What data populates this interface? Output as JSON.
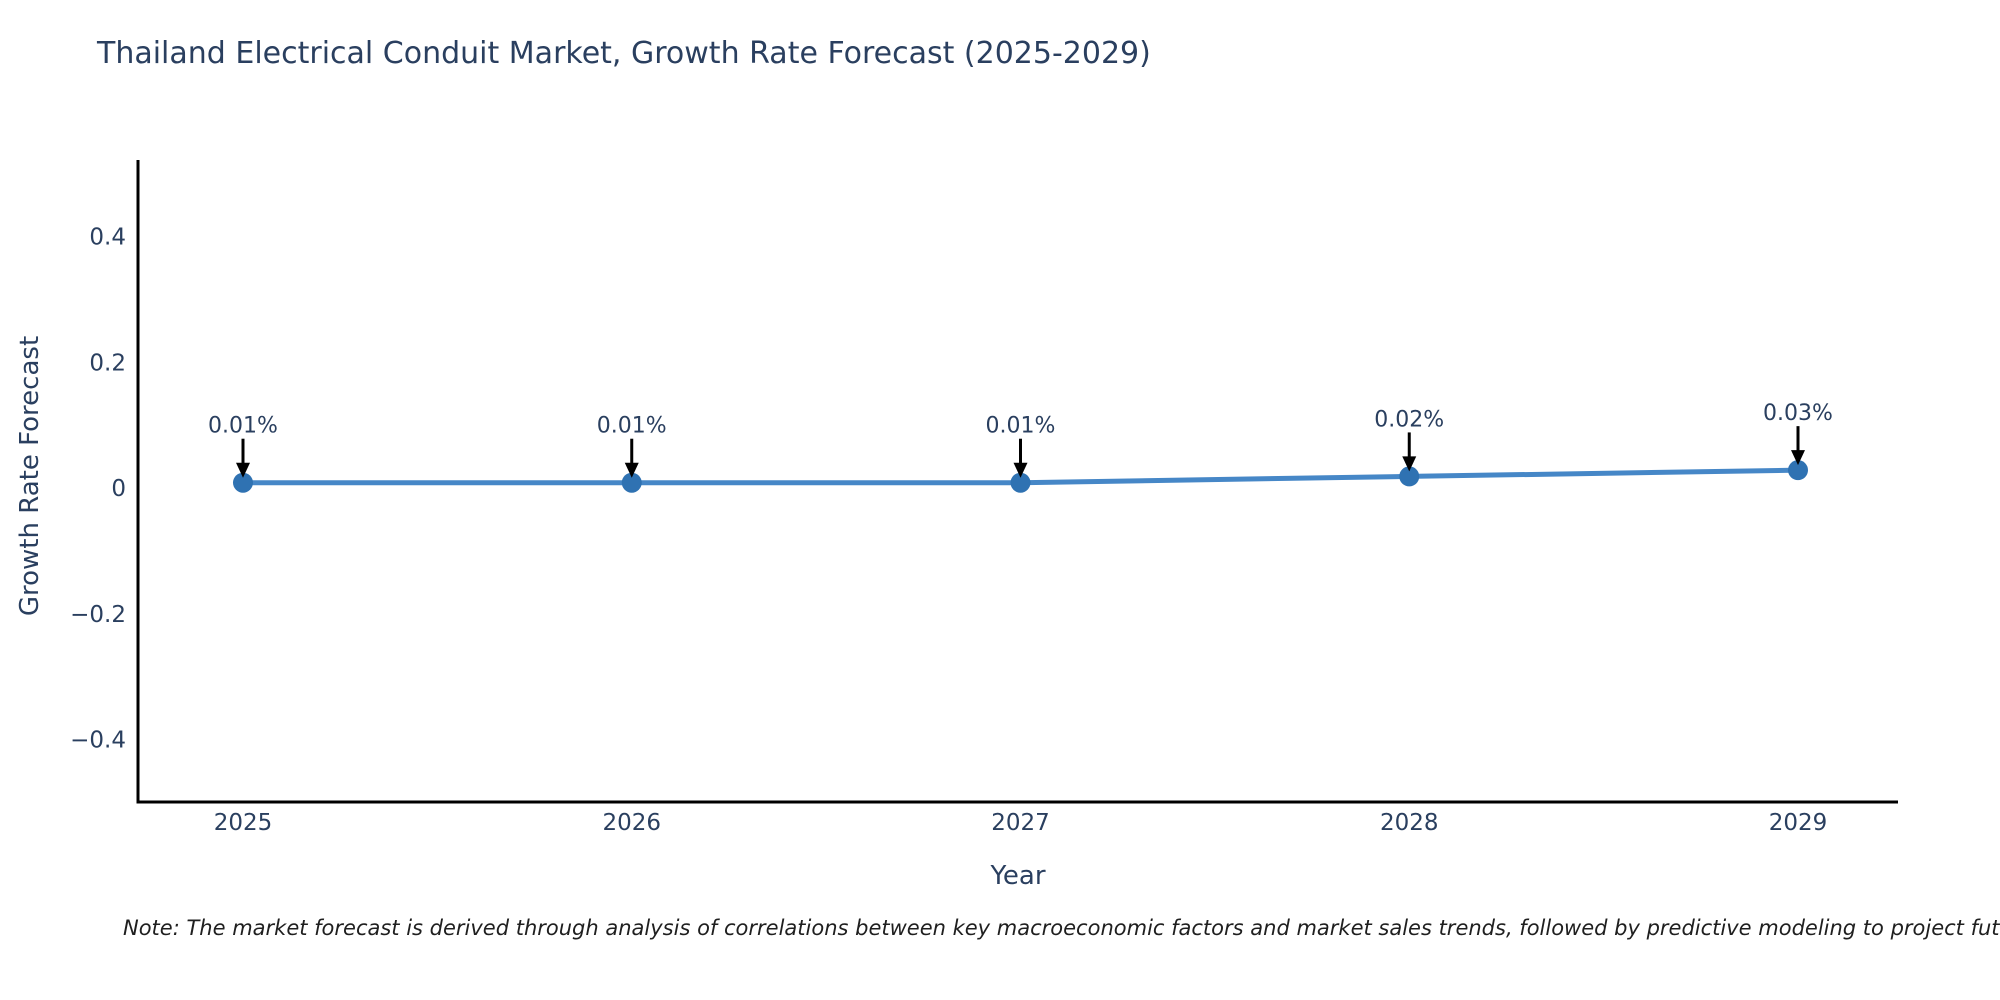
{
  "title": "Thailand Electrical Conduit Market, Growth Rate Forecast (2025-2029)",
  "note": "Note: The market forecast is derived through analysis of correlations between key macroeconomic factors and market sales trends, followed by predictive modeling to project future sales",
  "chart_data": {
    "type": "line",
    "title": "Thailand Electrical Conduit Market, Growth Rate Forecast (2025-2029)",
    "x": [
      "2025",
      "2026",
      "2027",
      "2028",
      "2029"
    ],
    "y": [
      0.01,
      0.01,
      0.01,
      0.02,
      0.03
    ],
    "point_labels": [
      "0.01%",
      "0.01%",
      "0.01%",
      "0.02%",
      "0.03%"
    ],
    "xlabel": "Year",
    "ylabel": "Growth Rate Forecast",
    "ytick_labels": [
      "0.4",
      "0.2",
      "0",
      "−0.2",
      "−0.4"
    ],
    "ytick_values": [
      0.4,
      0.2,
      0,
      -0.2,
      -0.4
    ],
    "ylim": [
      -0.51,
      0.52
    ],
    "grid": false,
    "legend": "none",
    "annotation_style": "arrow-down-to-point",
    "colors": {
      "line": "#4687c7",
      "marker": "#2f72b2",
      "axis": "#000000",
      "text": "#2a3f5f",
      "arrow": "#000000"
    }
  }
}
